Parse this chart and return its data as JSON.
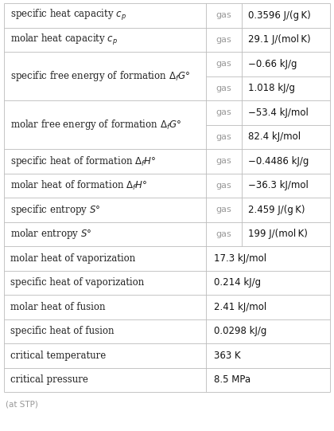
{
  "rows": [
    {
      "label": "specific heat capacity $c_p$",
      "col2": "gas",
      "col3": "0.3596 J/(g K)",
      "span_label": false,
      "span_val": false
    },
    {
      "label": "molar heat capacity $c_p$",
      "col2": "gas",
      "col3": "29.1 J/(mol K)",
      "span_label": false,
      "span_val": false
    },
    {
      "label": "specific free energy of formation $\\Delta_f G°$",
      "col2": "gas",
      "col3": "−0.66 kJ/g",
      "span_label": false,
      "span_val": false
    },
    {
      "label": "",
      "col2": "gas",
      "col3": "1.018 kJ/g",
      "span_label": true,
      "span_val": false
    },
    {
      "label": "molar free energy of formation $\\Delta_f G°$",
      "col2": "gas",
      "col3": "−53.4 kJ/mol",
      "span_label": false,
      "span_val": false
    },
    {
      "label": "",
      "col2": "gas",
      "col3": "82.4 kJ/mol",
      "span_label": true,
      "span_val": false
    },
    {
      "label": "specific heat of formation $\\Delta_f H°$",
      "col2": "gas",
      "col3": "−0.4486 kJ/g",
      "span_label": false,
      "span_val": false
    },
    {
      "label": "molar heat of formation $\\Delta_f H°$",
      "col2": "gas",
      "col3": "−36.3 kJ/mol",
      "span_label": false,
      "span_val": false
    },
    {
      "label": "specific entropy $S°$",
      "col2": "gas",
      "col3": "2.459 J/(g K)",
      "span_label": false,
      "span_val": false
    },
    {
      "label": "molar entropy $S°$",
      "col2": "gas",
      "col3": "199 J/(mol K)",
      "span_label": false,
      "span_val": false
    },
    {
      "label": "molar heat of vaporization",
      "col2": "17.3 kJ/mol",
      "col3": "",
      "span_label": false,
      "span_val": true
    },
    {
      "label": "specific heat of vaporization",
      "col2": "0.214 kJ/g",
      "col3": "",
      "span_label": false,
      "span_val": true
    },
    {
      "label": "molar heat of fusion",
      "col2": "2.41 kJ/mol",
      "col3": "",
      "span_label": false,
      "span_val": true
    },
    {
      "label": "specific heat of fusion",
      "col2": "0.0298 kJ/g",
      "col3": "",
      "span_label": false,
      "span_val": true
    },
    {
      "label": "critical temperature",
      "col2": "363 K",
      "col3": "",
      "span_label": false,
      "span_val": true
    },
    {
      "label": "critical pressure",
      "col2": "8.5 MPa",
      "col3": "",
      "span_label": false,
      "span_val": true
    }
  ],
  "footer": "(at STP)",
  "bg_color": "#ffffff",
  "border_color": "#bbbbbb",
  "gas_color": "#999999",
  "label_color": "#222222",
  "val_color": "#111111",
  "label_font_size": 8.5,
  "gas_font_size": 8.0,
  "val_font_size": 8.5
}
